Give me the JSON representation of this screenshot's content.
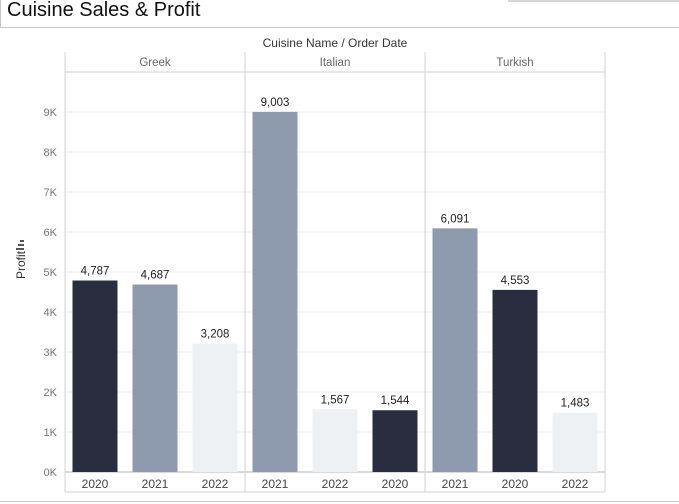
{
  "title": "Cuisine Sales & Profit",
  "chart_data": {
    "type": "bar",
    "header": "Cuisine Name / Order Date",
    "ylabel": "Profit",
    "ylim": [
      0,
      10000
    ],
    "yticks": [
      0,
      1000,
      2000,
      3000,
      4000,
      5000,
      6000,
      7000,
      8000,
      9000
    ],
    "ytick_labels": [
      "0K",
      "1K",
      "2K",
      "3K",
      "4K",
      "5K",
      "6K",
      "7K",
      "8K",
      "9K"
    ],
    "grid": true,
    "colors": {
      "dark": "#2a2d3f",
      "mid": "#8e9aae",
      "light": "#edf1f4"
    },
    "panels": [
      {
        "name": "Greek",
        "bars": [
          {
            "year": "2020",
            "value": 4787,
            "label": "4,787",
            "color": "dark"
          },
          {
            "year": "2021",
            "value": 4687,
            "label": "4,687",
            "color": "mid"
          },
          {
            "year": "2022",
            "value": 3208,
            "label": "3,208",
            "color": "light"
          }
        ]
      },
      {
        "name": "Italian",
        "bars": [
          {
            "year": "2021",
            "value": 9003,
            "label": "9,003",
            "color": "mid"
          },
          {
            "year": "2022",
            "value": 1567,
            "label": "1,567",
            "color": "light"
          },
          {
            "year": "2020",
            "value": 1544,
            "label": "1,544",
            "color": "dark"
          }
        ]
      },
      {
        "name": "Turkish",
        "bars": [
          {
            "year": "2021",
            "value": 6091,
            "label": "6,091",
            "color": "mid"
          },
          {
            "year": "2020",
            "value": 4553,
            "label": "4,553",
            "color": "dark"
          },
          {
            "year": "2022",
            "value": 1483,
            "label": "1,483",
            "color": "light"
          }
        ]
      }
    ]
  }
}
